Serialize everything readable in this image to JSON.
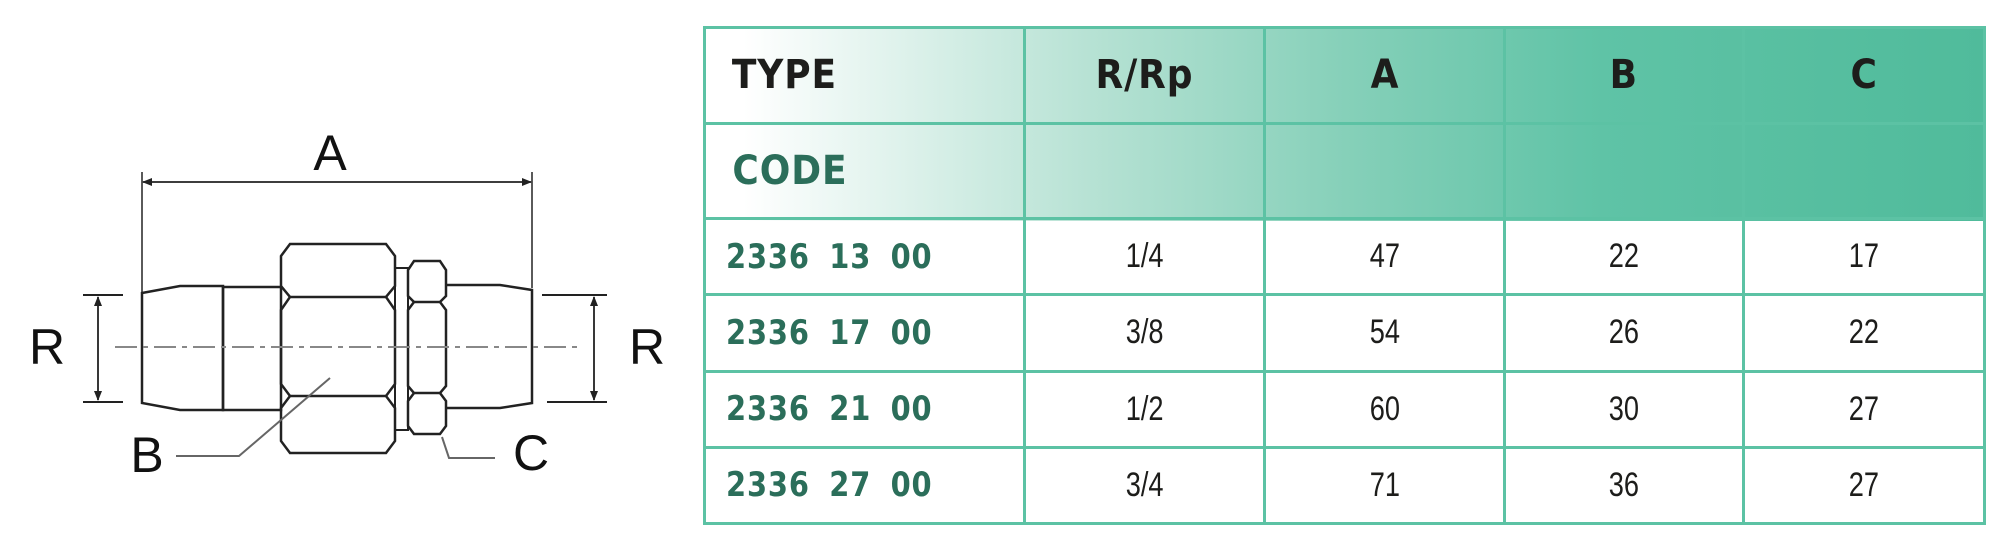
{
  "diagram": {
    "labels": {
      "a": "A",
      "b": "B",
      "c": "C",
      "r_left": "R",
      "r_right": "R"
    }
  },
  "table": {
    "headers": {
      "type": "TYPE",
      "code": "CODE",
      "r_rp": "R/Rp",
      "a": "A",
      "b": "B",
      "c": "C"
    },
    "rows": [
      {
        "code": "2336  13 00",
        "r_rp": "1/4",
        "a": "47",
        "b": "22",
        "c": "17"
      },
      {
        "code": "2336  17 00",
        "r_rp": "3/8",
        "a": "54",
        "b": "26",
        "c": "22"
      },
      {
        "code": "2336  21 00",
        "r_rp": "1/2",
        "a": "60",
        "b": "30",
        "c": "27"
      },
      {
        "code": "2336  27 00",
        "r_rp": "3/4",
        "a": "71",
        "b": "36",
        "c": "27"
      }
    ],
    "colors": {
      "border": "#5cc2a4",
      "header_gradient_end": "#50bb9b",
      "code_text": "#2b6e5a"
    }
  }
}
